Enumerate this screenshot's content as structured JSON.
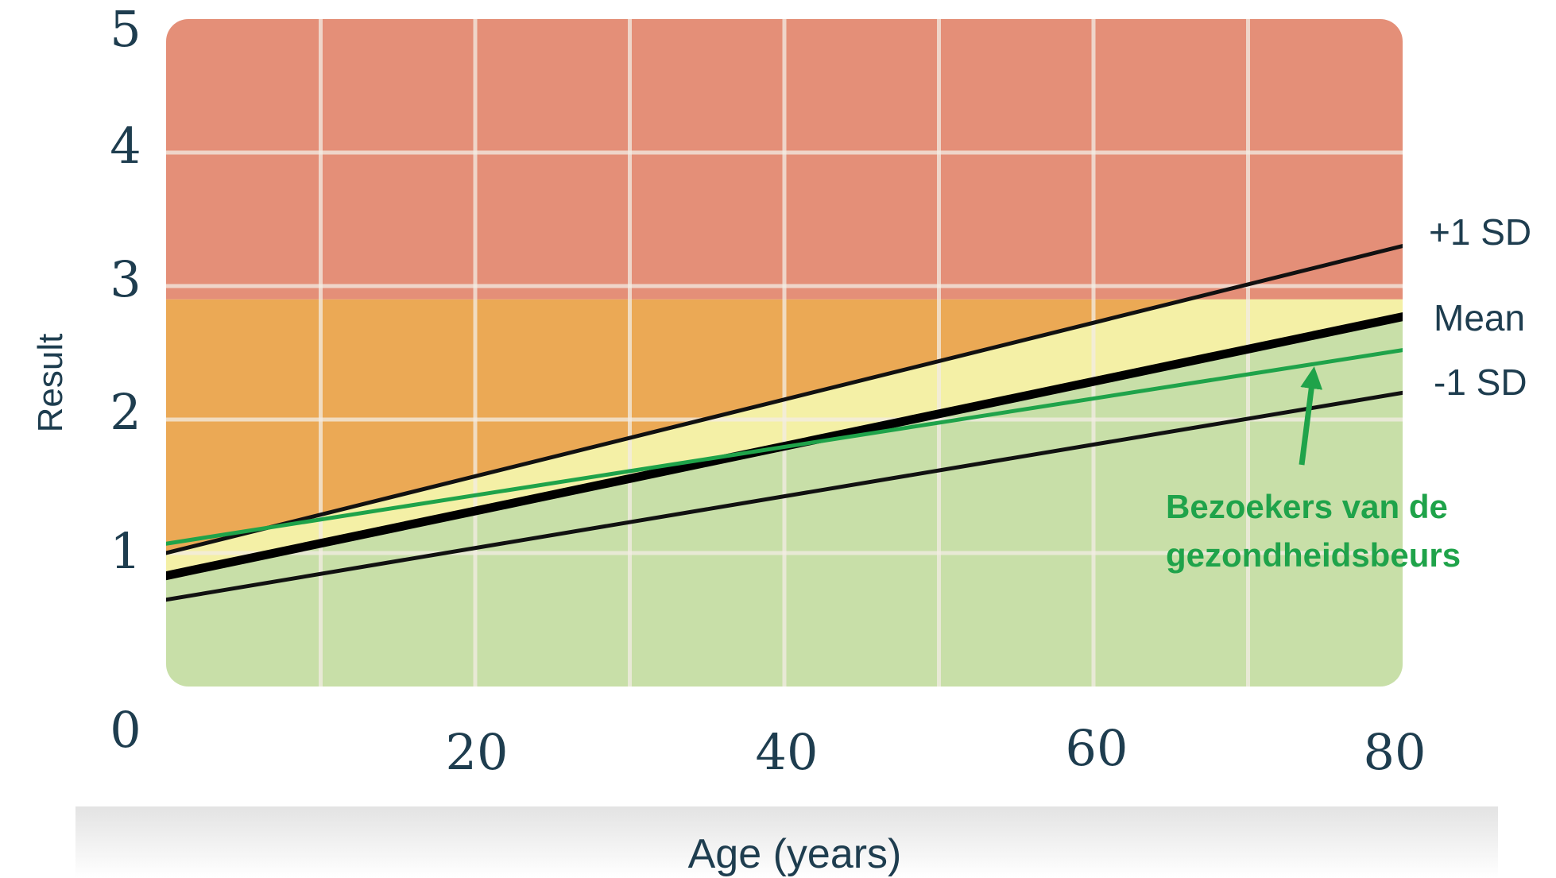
{
  "chart_data": {
    "type": "line",
    "title": "",
    "xlabel": "Age (years)",
    "ylabel": "Result",
    "xlim": [
      0,
      80
    ],
    "ylim": [
      0,
      5
    ],
    "x_ticks": [
      "0",
      "20",
      "40",
      "60",
      "80"
    ],
    "y_ticks": [
      "1",
      "2",
      "3",
      "4",
      "5"
    ],
    "grid": true,
    "zones": [
      {
        "name": "green",
        "from": 0,
        "to": "mean",
        "color": "#c8dfa8"
      },
      {
        "name": "yellow",
        "from": "mean",
        "to": "+1 SD",
        "color": "#f4f0a6"
      },
      {
        "name": "orange",
        "from": 1.0,
        "to": 2.9,
        "color": "#eba955"
      },
      {
        "name": "red",
        "from": 2.9,
        "to": 5.0,
        "color": "#e48f78"
      }
    ],
    "series": [
      {
        "name": "+1 SD",
        "label": "+1 SD",
        "x": [
          0,
          80
        ],
        "y": [
          1.0,
          3.3
        ],
        "color": "#111111",
        "weight": "normal"
      },
      {
        "name": "Mean",
        "label": "Mean",
        "x": [
          0,
          80
        ],
        "y": [
          0.83,
          2.77
        ],
        "color": "#000000",
        "weight": "bold"
      },
      {
        "name": "-1 SD",
        "label": "-1 SD",
        "x": [
          0,
          80
        ],
        "y": [
          0.65,
          2.2
        ],
        "color": "#111111",
        "weight": "normal"
      },
      {
        "name": "Bezoekers van de gezondheidsbeurs",
        "x": [
          0,
          80
        ],
        "y": [
          1.07,
          2.52
        ],
        "color": "#1fa34a",
        "weight": "normal"
      }
    ],
    "annotation": {
      "text_line1": "Bezoekers van de",
      "text_line2": "gezondheidsbeurs",
      "color": "#1fa34a",
      "points_to": {
        "x": 75,
        "y": 2.4
      }
    }
  }
}
